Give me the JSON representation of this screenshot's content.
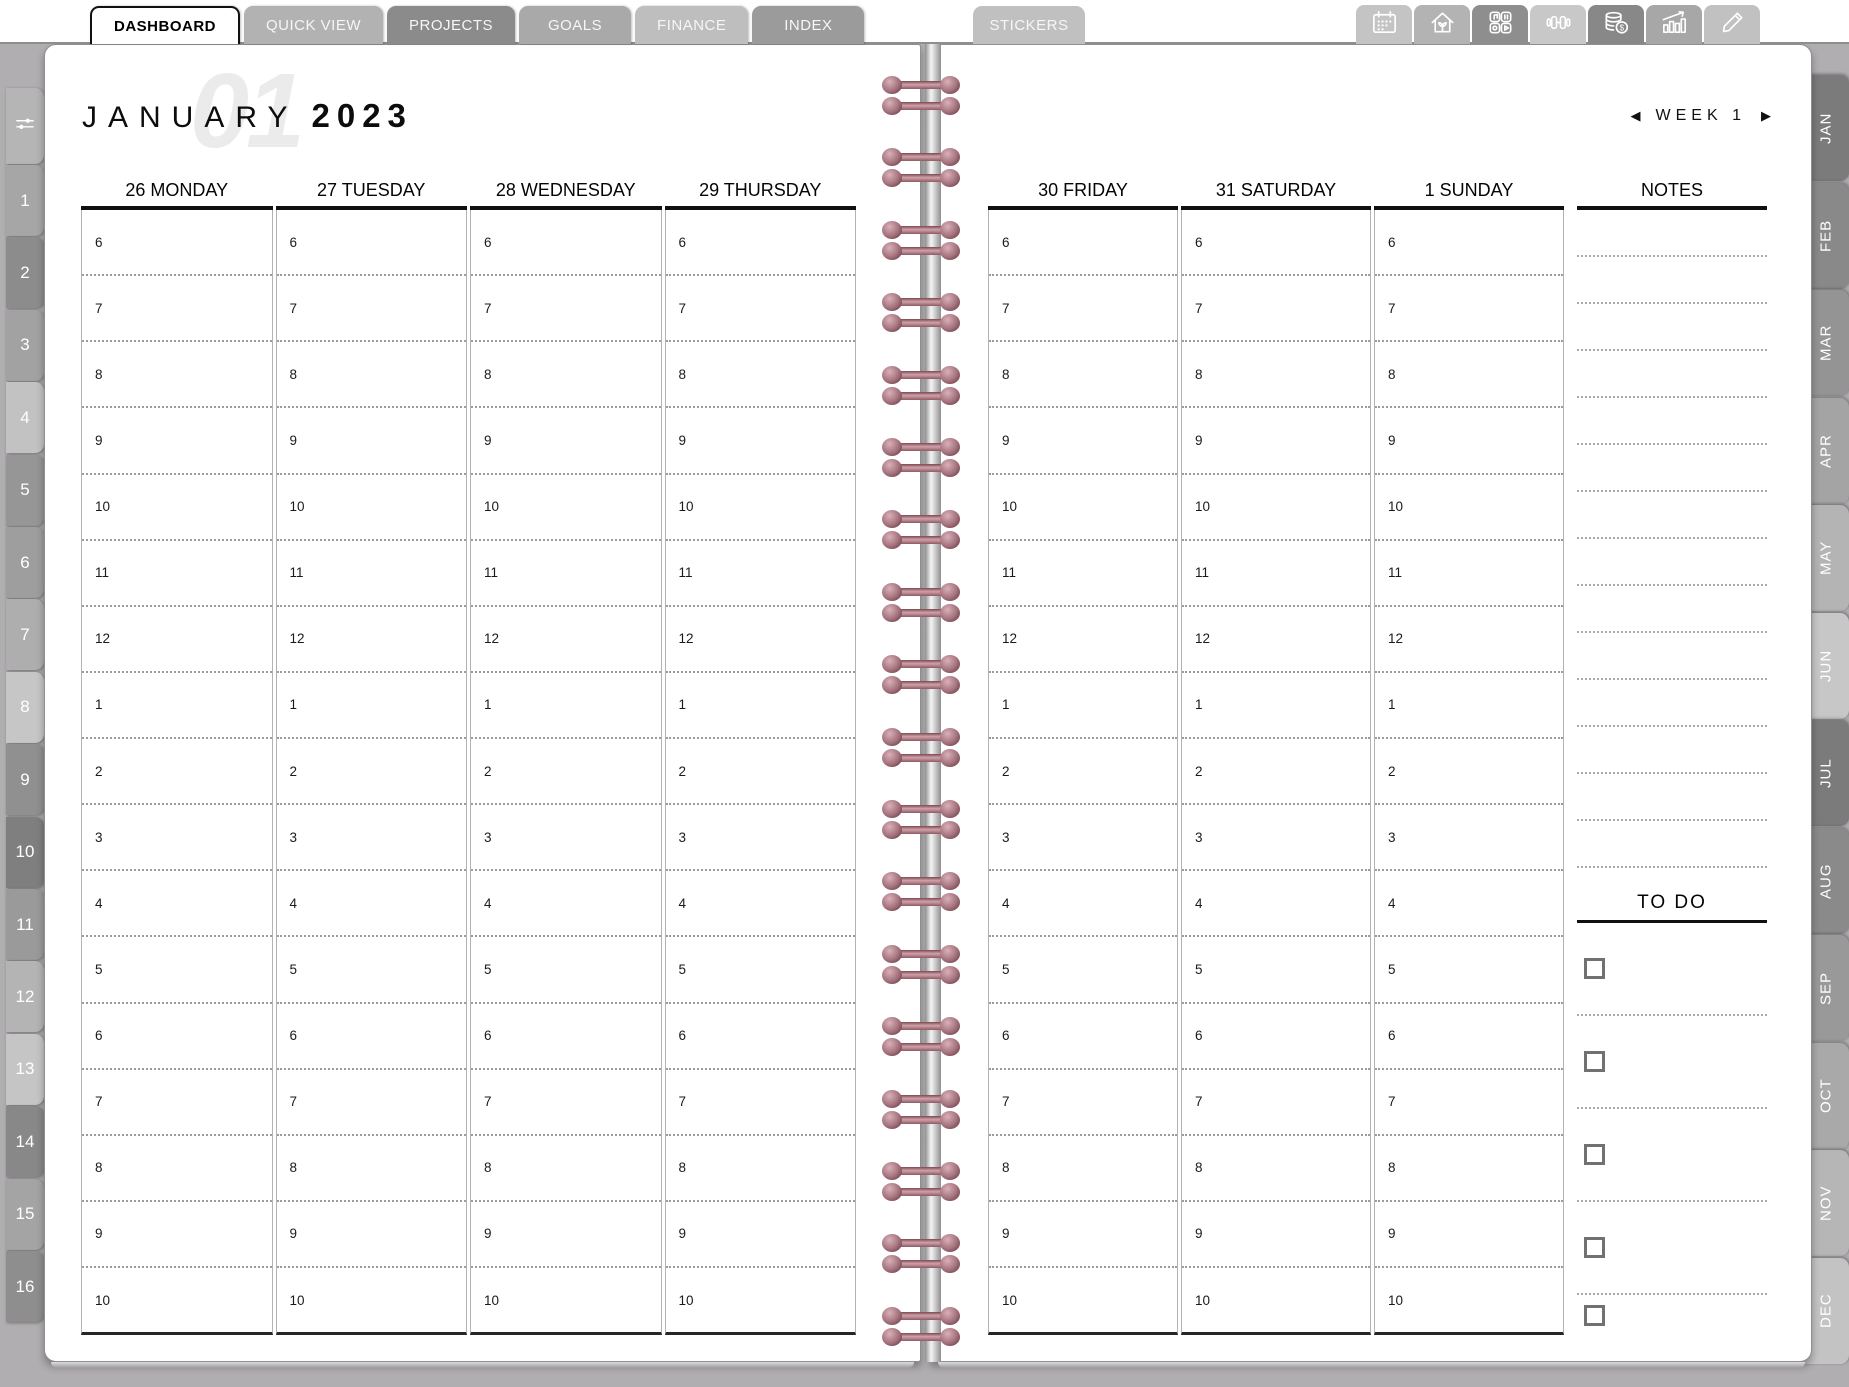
{
  "header": {
    "tabs": [
      {
        "label": "DASHBOARD",
        "color": "#ffffff",
        "active": true
      },
      {
        "label": "QUICK VIEW",
        "color": "#b2b2b2",
        "active": false
      },
      {
        "label": "PROJECTS",
        "color": "#8b8b8b",
        "active": false
      },
      {
        "label": "GOALS",
        "color": "#a9a9a9",
        "active": false
      },
      {
        "label": "FINANCE",
        "color": "#bebebe",
        "active": false
      },
      {
        "label": "INDEX",
        "color": "#9b9b9b",
        "active": false
      }
    ],
    "stickers_tab": {
      "label": "STICKERS",
      "color": "#c0c0c0"
    },
    "icon_tabs": [
      {
        "icon": "calendar-icon",
        "color": "#c4c4c4"
      },
      {
        "icon": "home-icon",
        "color": "#b3b3b3"
      },
      {
        "icon": "apps-icon",
        "color": "#8e8e8e"
      },
      {
        "icon": "dumbbell-icon",
        "color": "#c8c8c8"
      },
      {
        "icon": "coins-icon",
        "color": "#888888"
      },
      {
        "icon": "chart-icon",
        "color": "#a7a7a7"
      },
      {
        "icon": "pencil-icon",
        "color": "#c1c1c1"
      }
    ]
  },
  "left_tab_strip": {
    "filter_tab": {
      "icon": "sliders-icon",
      "color": "#b5b5b5"
    },
    "week_tabs": [
      {
        "label": "1",
        "color": "#a6a6a6"
      },
      {
        "label": "2",
        "color": "#8c8c8c"
      },
      {
        "label": "3",
        "color": "#a2a2a2"
      },
      {
        "label": "4",
        "color": "#c2c2c2"
      },
      {
        "label": "5",
        "color": "#969696"
      },
      {
        "label": "6",
        "color": "#9e9e9e"
      },
      {
        "label": "7",
        "color": "#aeaeae"
      },
      {
        "label": "8",
        "color": "#c6c6c6"
      },
      {
        "label": "9",
        "color": "#909090"
      },
      {
        "label": "10",
        "color": "#7f7f7f"
      },
      {
        "label": "11",
        "color": "#9a9a9a"
      },
      {
        "label": "12",
        "color": "#b4b4b4"
      },
      {
        "label": "13",
        "color": "#c5c5c5"
      },
      {
        "label": "14",
        "color": "#888888"
      },
      {
        "label": "15",
        "color": "#a4a4a4"
      },
      {
        "label": "16",
        "color": "#8e8e8e"
      }
    ]
  },
  "month_tab_strip": [
    {
      "label": "JAN",
      "color": "#7b7b7b"
    },
    {
      "label": "FEB",
      "color": "#898989"
    },
    {
      "label": "MAR",
      "color": "#949494"
    },
    {
      "label": "APR",
      "color": "#a4a4a4"
    },
    {
      "label": "MAY",
      "color": "#b4b4b4"
    },
    {
      "label": "JUN",
      "color": "#c7c7c7"
    },
    {
      "label": "JUL",
      "color": "#7b7b7b"
    },
    {
      "label": "AUG",
      "color": "#8a8a8a"
    },
    {
      "label": "SEP",
      "color": "#999999"
    },
    {
      "label": "OCT",
      "color": "#a9a9a9"
    },
    {
      "label": "NOV",
      "color": "#b6b6b6"
    },
    {
      "label": "DEC",
      "color": "#c3c3c3"
    }
  ],
  "left_page": {
    "ghost_number": "01",
    "month": "JANUARY",
    "year": "2023",
    "day_columns": [
      {
        "header": "26 MONDAY"
      },
      {
        "header": "27 TUESDAY"
      },
      {
        "header": "28 WEDNESDAY"
      },
      {
        "header": "29 THURSDAY"
      }
    ]
  },
  "right_page": {
    "week_nav": {
      "prev": "◀",
      "label": "WEEK 1",
      "next": "▶"
    },
    "day_columns": [
      {
        "header": "30 FRIDAY"
      },
      {
        "header": "31 SATURDAY"
      },
      {
        "header": "1 SUNDAY"
      }
    ],
    "notes": {
      "header": "NOTES",
      "line_count": 14
    },
    "todo": {
      "header": "TO DO",
      "item_count": 5
    }
  },
  "time_slots": [
    "6",
    "7",
    "8",
    "9",
    "10",
    "11",
    "12",
    "1",
    "2",
    "3",
    "4",
    "5",
    "6",
    "7",
    "8",
    "9",
    "10"
  ],
  "binding": {
    "ring_pairs": 18,
    "ring_color": "#a5747f"
  }
}
